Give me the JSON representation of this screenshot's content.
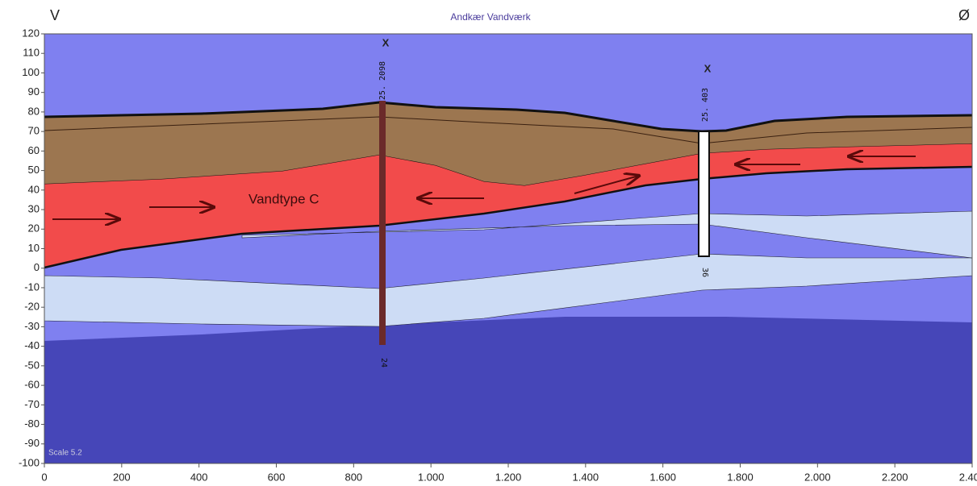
{
  "chart_data": {
    "type": "section",
    "title": "Andkær Vandværk",
    "corner_left": "V",
    "corner_right": "Ø",
    "annotations": [
      "Vandtype C"
    ],
    "scale_note": "Scale 5.2",
    "boreholes": [
      {
        "marker": "X",
        "id": "25. 2098",
        "depth_label": "24"
      },
      {
        "marker": "X",
        "id": "25. 403",
        "depth_label": "36"
      }
    ],
    "xlim": [
      0,
      2400
    ],
    "ylim": [
      -100,
      120
    ],
    "xticks": [
      0,
      200,
      400,
      600,
      800,
      {
        "value": 1000,
        "label": "1.000"
      },
      {
        "value": 1200,
        "label": "1.200"
      },
      {
        "value": 1400,
        "label": "1.400"
      },
      {
        "value": 1600,
        "label": "1.600"
      },
      {
        "value": 1800,
        "label": "1.800"
      },
      {
        "value": 2000,
        "label": "2.000"
      },
      {
        "value": 2200,
        "label": "2.200"
      },
      {
        "value": 2400,
        "label": "2.400"
      }
    ],
    "yticks": [
      -100,
      -90,
      -80,
      -70,
      -60,
      -50,
      -40,
      -30,
      -20,
      -10,
      0,
      10,
      20,
      30,
      40,
      50,
      60,
      70,
      80,
      90,
      100,
      110,
      120
    ],
    "grid": true
  }
}
